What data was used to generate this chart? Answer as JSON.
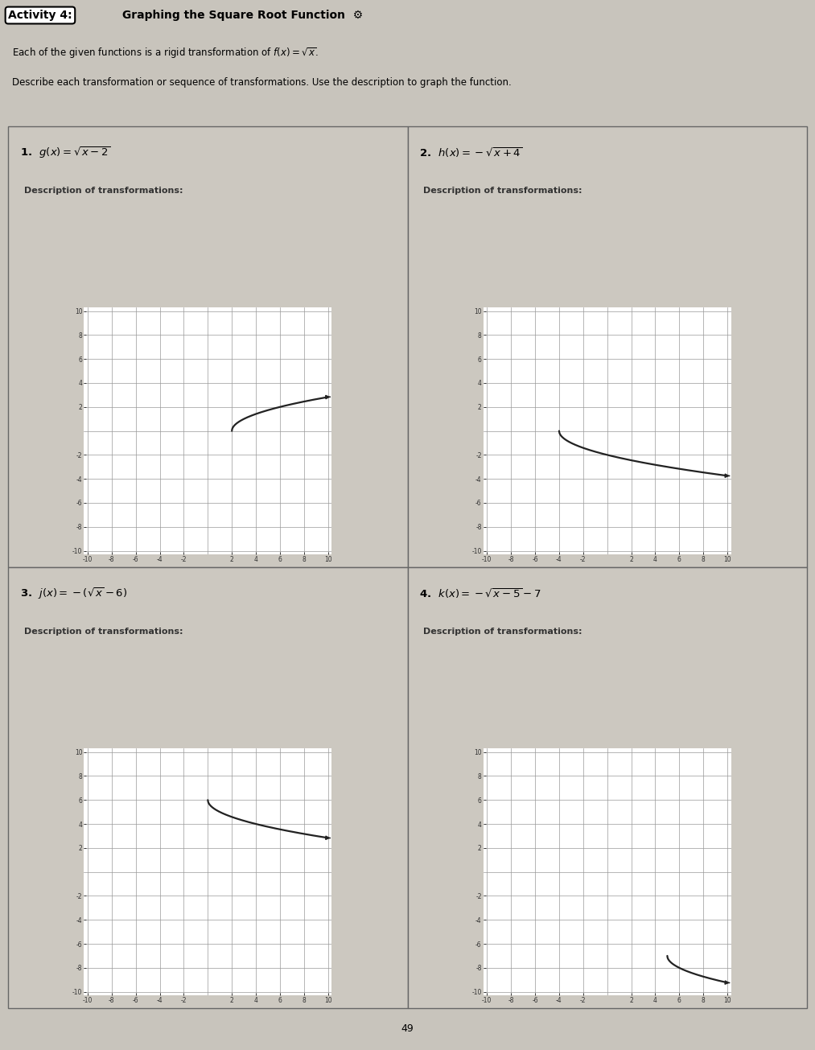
{
  "page_bg": "#c8c4bc",
  "header_bg": "#d4d0c8",
  "cell_bg": "#ccc8c0",
  "graph_bg": "#d8d4cc",
  "border_color": "#666666",
  "curve_color": "#222222",
  "axis_color": "#222222",
  "grid_color": "#999999",
  "title_oval_text": "Activity 4:",
  "title_rest": " Graphing the Square Root Function",
  "subtitle1": "Each of the given functions is a rigid transformation of $f(x) = \\sqrt{x}$.",
  "subtitle2": "Describe each transformation or sequence of transformations. Use the description to graph the function.",
  "desc_text": "Description of transformations:",
  "functions": [
    {
      "number": "1.",
      "label": "$g(x) = \\sqrt{x-2}$",
      "shift_x": 2,
      "shift_y": 0,
      "reflect_y": false
    },
    {
      "number": "2.",
      "label": "$h(x) = -\\sqrt{x+4}$",
      "shift_x": -4,
      "shift_y": 0,
      "reflect_y": true
    },
    {
      "number": "3.",
      "label": "$j(x) = -(\\sqrt{x}-6)$",
      "shift_x": 0,
      "shift_y": 6,
      "reflect_y": true
    },
    {
      "number": "4.",
      "label": "$k(x) = -\\sqrt{x-5}-7$",
      "shift_x": 5,
      "shift_y": -7,
      "reflect_y": true
    }
  ],
  "xlim": [
    -10,
    10
  ],
  "ylim": [
    -10,
    10
  ],
  "page_number": "49"
}
